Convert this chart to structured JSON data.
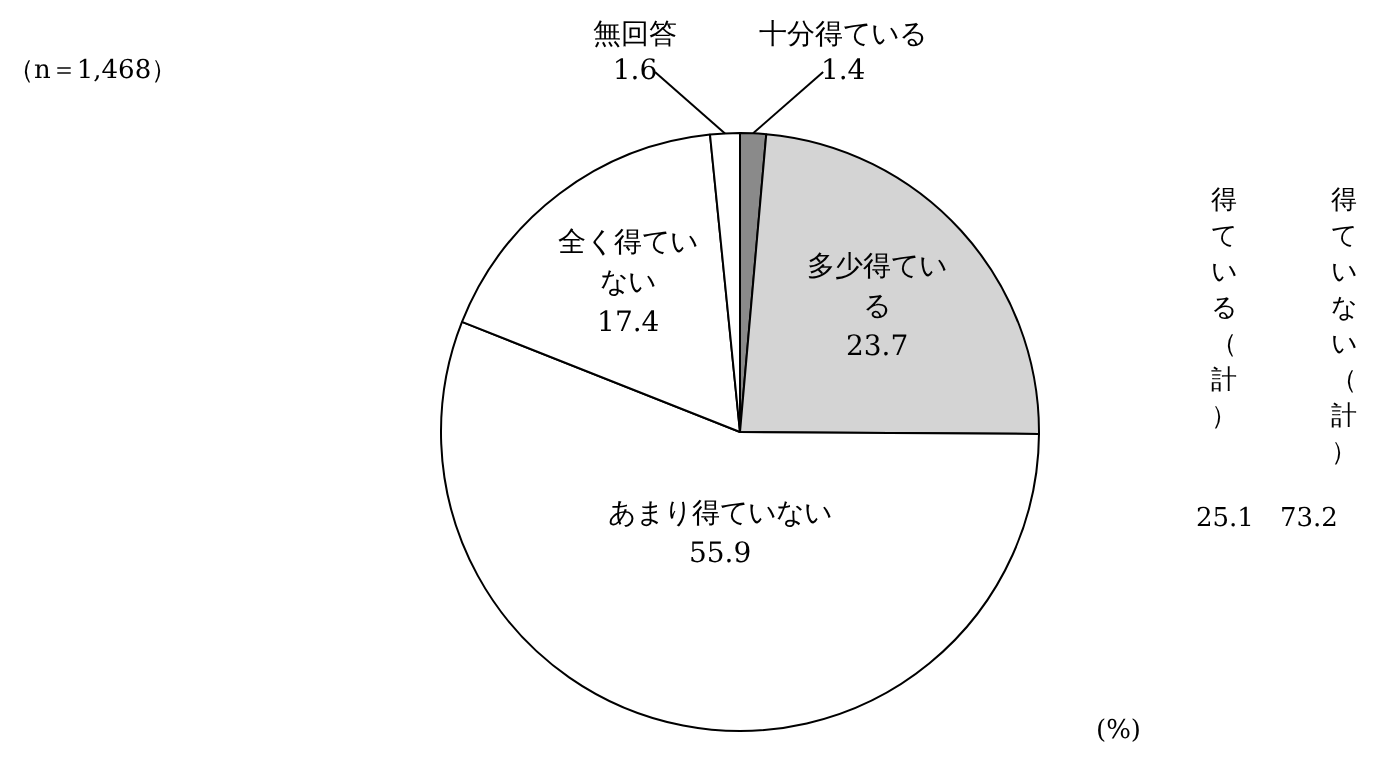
{
  "chart_data": {
    "type": "pie",
    "categories": [
      "十分得ている",
      "多少得ている",
      "あまり得ていない",
      "全く得ていない",
      "無回答"
    ],
    "values": [
      1.4,
      23.7,
      55.9,
      17.4,
      1.6
    ],
    "colors": [
      "#8a8a8a",
      "#d4d4d4",
      "#ffffff",
      "#ffffff",
      "#ffffff"
    ],
    "data_labels": true,
    "legend": false,
    "annotations": [
      "（n＝1,468）",
      "得ている（計）",
      "25.1",
      "得ていない（計）",
      "73.2",
      "(%)"
    ]
  }
}
